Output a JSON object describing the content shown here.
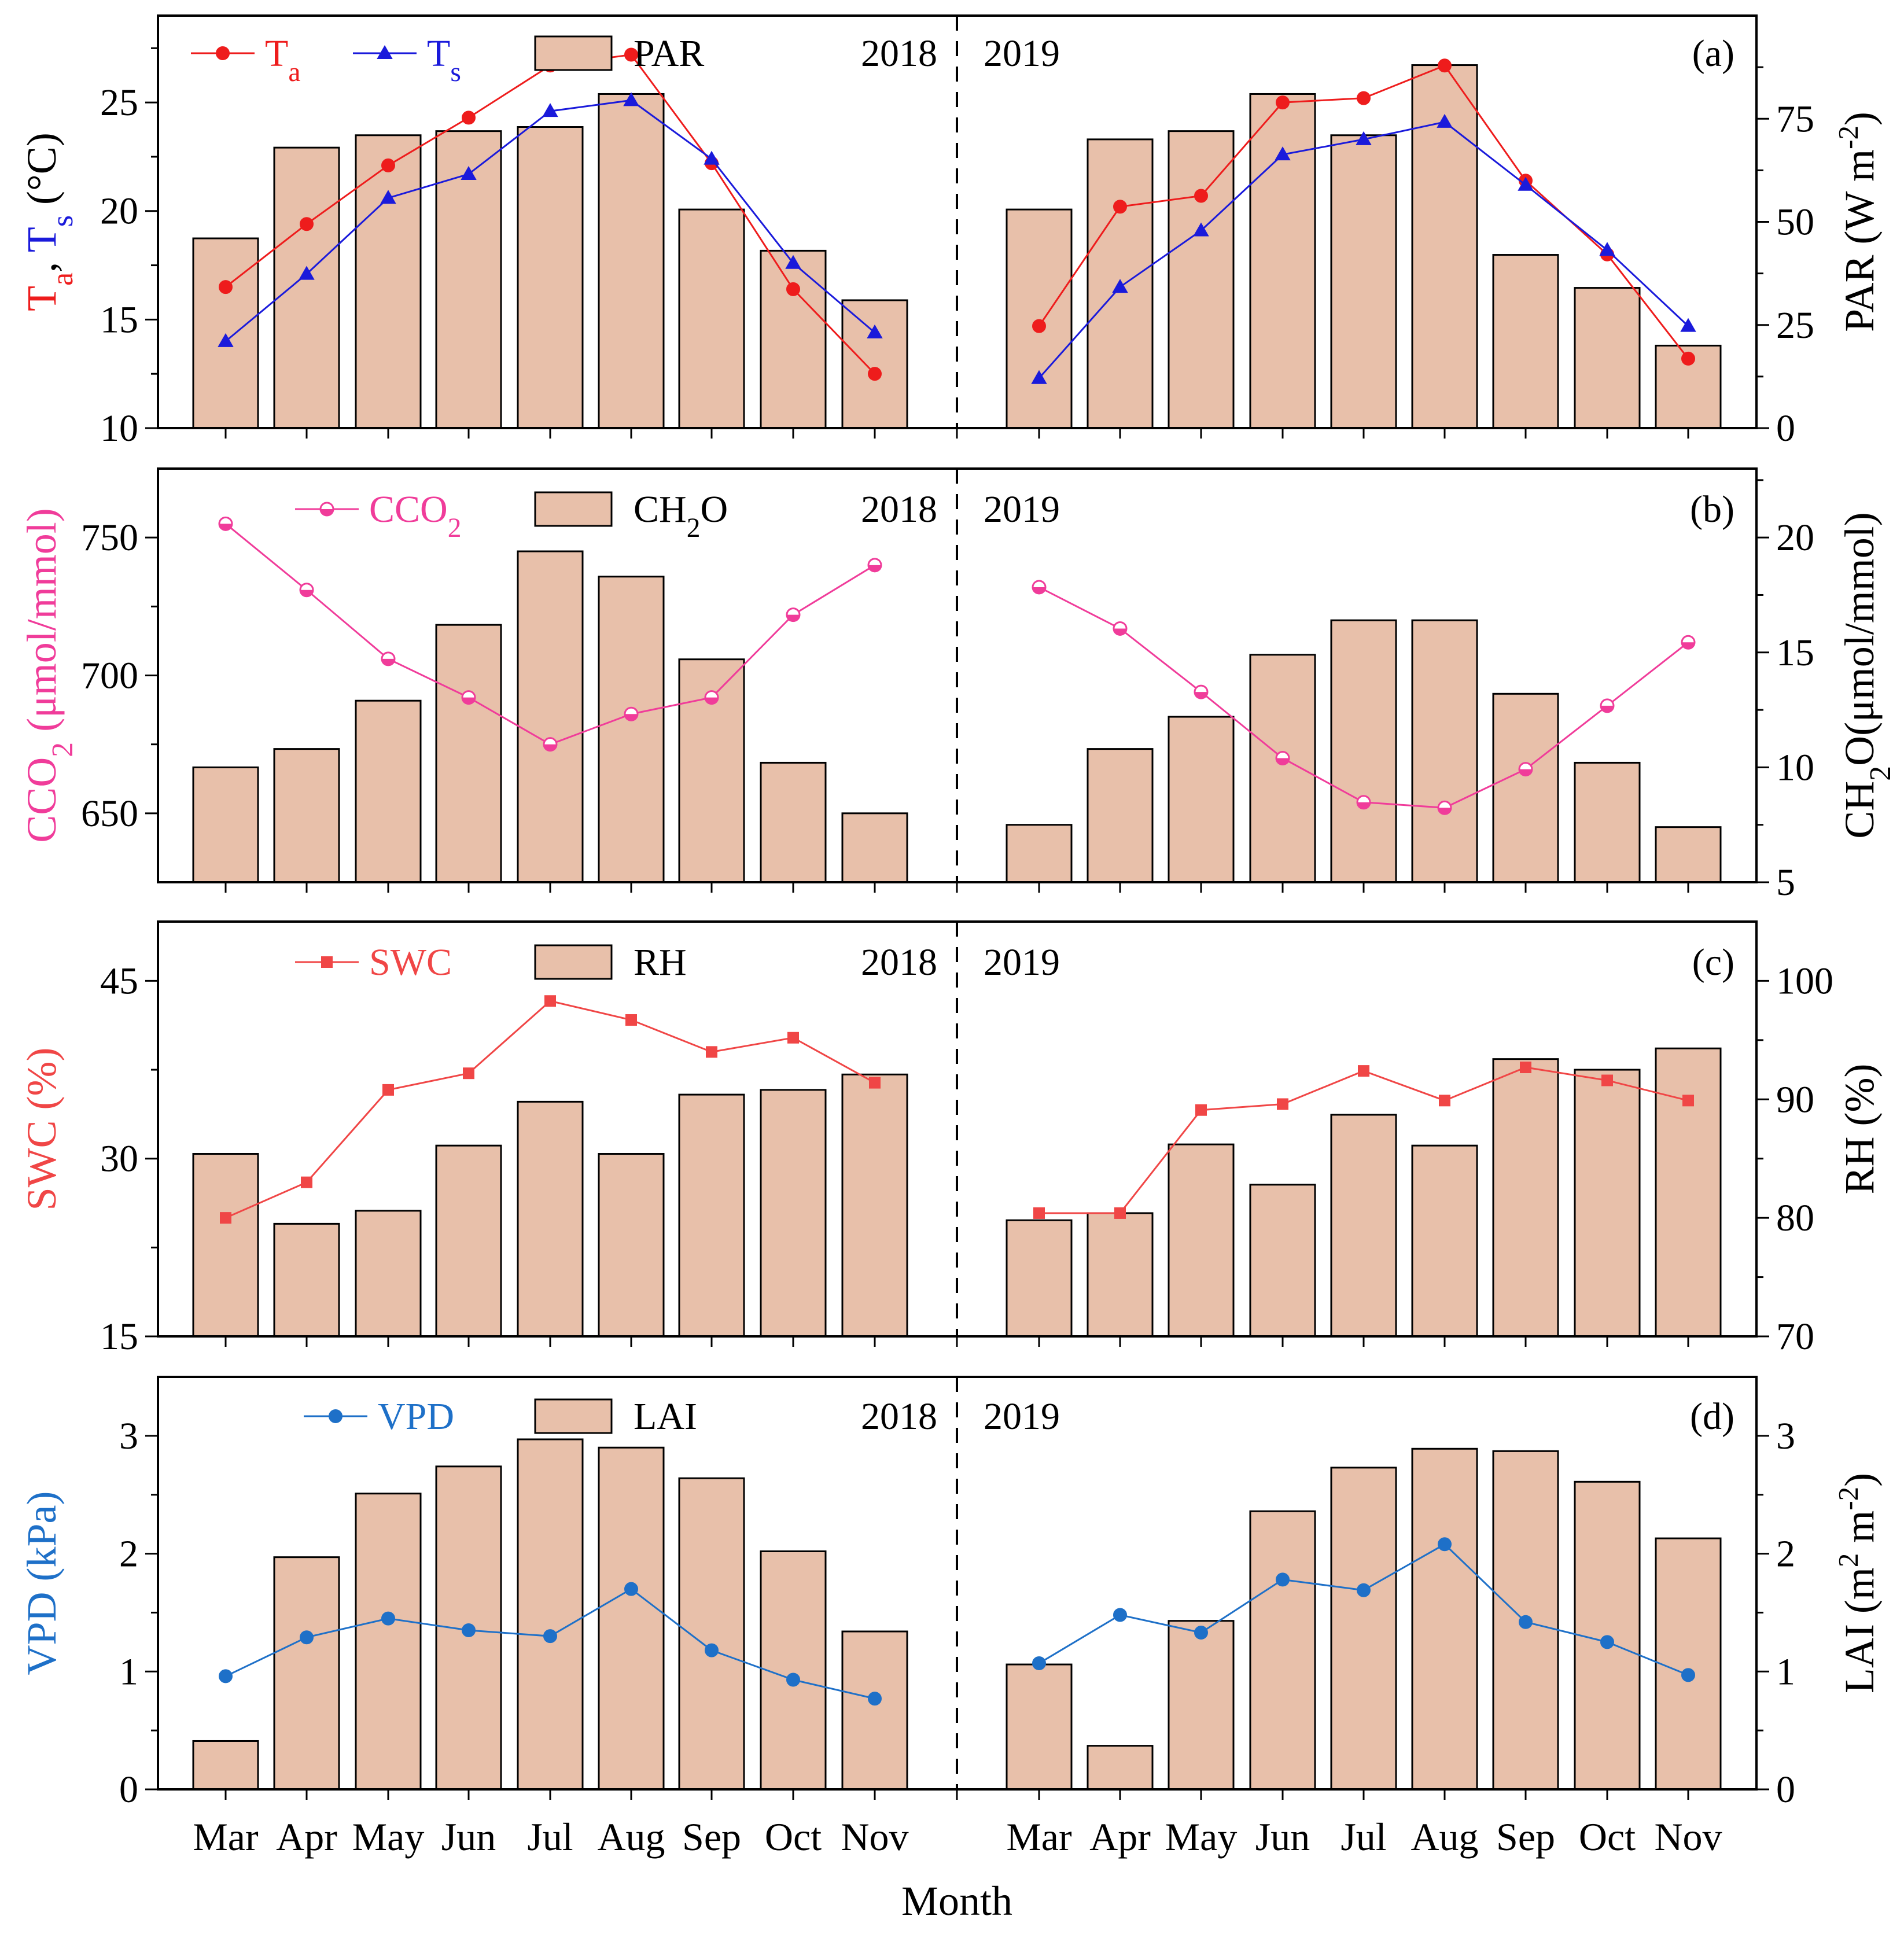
{
  "figure": {
    "xlabel": "Month"
  },
  "colors": {
    "bar_fill": "#e8c0aa",
    "bar_stroke": "#000000",
    "ta": "#ee1c1c",
    "ts": "#1a1adb",
    "cco2": "#f03c9a",
    "swc": "#f04646",
    "vpd": "#1e70c8"
  },
  "years": [
    "2018",
    "2019"
  ],
  "months": [
    "Mar",
    "Apr",
    "May",
    "Jun",
    "Jul",
    "Aug",
    "Sep",
    "Oct",
    "Nov"
  ],
  "chart_data": [
    {
      "panel": "(a)",
      "type": "bar+line",
      "ylabel_left": {
        "parts": [
          {
            "t": "T",
            "c": "ta"
          },
          {
            "t": "a",
            "c": "ta",
            "sub": true
          },
          {
            "t": ", ",
            "c": "black"
          },
          {
            "t": "T",
            "c": "ts"
          },
          {
            "t": "s",
            "c": "ts",
            "sub": true
          },
          {
            "t": " (°C)",
            "c": "black"
          }
        ]
      },
      "ylabel_right": {
        "parts": [
          {
            "t": "PAR (W m",
            "c": "black"
          },
          {
            "t": "-2",
            "c": "black",
            "sup": true
          },
          {
            "t": ")",
            "c": "black"
          }
        ]
      },
      "ylim_left": [
        10,
        29
      ],
      "yticks_left": [
        10,
        15,
        20,
        25
      ],
      "ylim_right": [
        0,
        100
      ],
      "yticks_right": [
        0,
        25,
        50,
        75
      ],
      "bars": {
        "name": "PAR",
        "legend_parts": [
          {
            "t": "PAR"
          }
        ],
        "values": {
          "2018": [
            46,
            68,
            71,
            72,
            73,
            81,
            53,
            43,
            31
          ],
          "2019": [
            53,
            70,
            72,
            81,
            71,
            88,
            42,
            34,
            20
          ]
        }
      },
      "lines": [
        {
          "name": "Ta",
          "color": "ta",
          "marker": "circle",
          "legend_parts": [
            {
              "t": "T"
            },
            {
              "t": "a",
              "sub": true
            }
          ],
          "values": {
            "2018": [
              16.5,
              19.4,
              22.1,
              24.3,
              26.7,
              27.2,
              22.2,
              16.4,
              12.5
            ],
            "2019": [
              14.7,
              20.2,
              20.7,
              25.0,
              25.2,
              26.7,
              21.4,
              18.0,
              13.2
            ]
          }
        },
        {
          "name": "Ts",
          "color": "ts",
          "marker": "triangle",
          "legend_parts": [
            {
              "t": "T"
            },
            {
              "t": "s",
              "sub": true
            }
          ],
          "values": {
            "2018": [
              14.0,
              17.1,
              20.6,
              21.7,
              24.6,
              25.1,
              22.4,
              17.6,
              14.4
            ],
            "2019": [
              12.3,
              16.5,
              19.1,
              22.6,
              23.3,
              24.1,
              21.2,
              18.2,
              14.7
            ]
          }
        }
      ]
    },
    {
      "panel": "(b)",
      "type": "bar+line",
      "ylabel_left": {
        "parts": [
          {
            "t": "CCO",
            "c": "cco2"
          },
          {
            "t": "2",
            "c": "cco2",
            "sub": true
          },
          {
            "t": " (μmol/mmol)",
            "c": "cco2"
          }
        ]
      },
      "ylabel_right": {
        "parts": [
          {
            "t": "CH",
            "c": "black"
          },
          {
            "t": "2",
            "c": "black",
            "sub": true
          },
          {
            "t": "O(μmol/mmol)",
            "c": "black"
          }
        ]
      },
      "ylim_left": [
        625,
        775
      ],
      "yticks_left": [
        650,
        700,
        750
      ],
      "ylim_right": [
        5,
        23
      ],
      "yticks_right": [
        5,
        10,
        15,
        20
      ],
      "bars": {
        "name": "CH2O",
        "legend_parts": [
          {
            "t": "CH"
          },
          {
            "t": "2",
            "sub": true
          },
          {
            "t": "O"
          }
        ],
        "values": {
          "2018": [
            10.0,
            10.8,
            12.9,
            16.2,
            19.4,
            18.3,
            14.7,
            10.2,
            8.0
          ],
          "2019": [
            7.5,
            10.8,
            12.2,
            14.9,
            16.4,
            16.4,
            13.2,
            10.2,
            7.4
          ]
        }
      },
      "lines": [
        {
          "name": "CCO2",
          "color": "cco2",
          "marker": "halfcircle",
          "legend_parts": [
            {
              "t": "CCO"
            },
            {
              "t": "2",
              "sub": true
            }
          ],
          "values": {
            "2018": [
              755,
              731,
              706,
              692,
              675,
              686,
              692,
              722,
              740
            ],
            "2019": [
              732,
              717,
              694,
              670,
              654,
              652,
              666,
              689,
              712
            ]
          }
        }
      ]
    },
    {
      "panel": "(c)",
      "type": "bar+line",
      "ylabel_left": {
        "parts": [
          {
            "t": "SWC (%)",
            "c": "swc"
          }
        ]
      },
      "ylabel_right": {
        "parts": [
          {
            "t": "RH (%)",
            "c": "black"
          }
        ]
      },
      "ylim_left": [
        15,
        50
      ],
      "yticks_left": [
        15,
        30,
        45
      ],
      "ylim_right": [
        70,
        105
      ],
      "yticks_right": [
        70,
        80,
        90,
        100
      ],
      "bars": {
        "name": "RH",
        "legend_parts": [
          {
            "t": "RH"
          }
        ],
        "values": {
          "2018": [
            85.4,
            79.5,
            80.6,
            86.1,
            89.8,
            85.4,
            90.4,
            90.8,
            92.1
          ],
          "2019": [
            79.8,
            80.4,
            86.2,
            82.8,
            88.7,
            86.1,
            93.4,
            92.5,
            94.3
          ]
        }
      },
      "lines": [
        {
          "name": "SWC",
          "color": "swc",
          "marker": "square",
          "legend_parts": [
            {
              "t": "SWC"
            }
          ],
          "values": {
            "2018": [
              25.0,
              28.0,
              35.8,
              37.2,
              43.3,
              41.7,
              39.0,
              40.2,
              36.4
            ],
            "2019": [
              25.4,
              25.4,
              34.1,
              34.6,
              37.4,
              34.9,
              37.7,
              36.6,
              34.9
            ]
          }
        }
      ]
    },
    {
      "panel": "(d)",
      "type": "bar+line",
      "ylabel_left": {
        "parts": [
          {
            "t": "VPD (kPa)",
            "c": "vpd"
          }
        ]
      },
      "ylabel_right": {
        "parts": [
          {
            "t": "LAI (m",
            "c": "black"
          },
          {
            "t": "2",
            "c": "black",
            "sup": true
          },
          {
            "t": " m",
            "c": "black"
          },
          {
            "t": "-2",
            "c": "black",
            "sup": true
          },
          {
            "t": ")",
            "c": "black"
          }
        ]
      },
      "ylim_left": [
        0,
        3.5
      ],
      "yticks_left": [
        0,
        1,
        2,
        3
      ],
      "ylim_right": [
        0,
        3.5
      ],
      "yticks_right": [
        0,
        1,
        2,
        3
      ],
      "bars": {
        "name": "LAI",
        "legend_parts": [
          {
            "t": "LAI"
          }
        ],
        "values": {
          "2018": [
            0.41,
            1.97,
            2.51,
            2.74,
            2.97,
            2.9,
            2.64,
            2.02,
            1.34
          ],
          "2019": [
            1.06,
            0.37,
            1.43,
            2.36,
            2.73,
            2.89,
            2.87,
            2.61,
            2.13
          ]
        }
      },
      "lines": [
        {
          "name": "VPD",
          "color": "vpd",
          "marker": "circle",
          "legend_parts": [
            {
              "t": "VPD"
            }
          ],
          "values": {
            "2018": [
              0.96,
              1.29,
              1.45,
              1.35,
              1.3,
              1.7,
              1.18,
              0.93,
              0.77
            ],
            "2019": [
              1.07,
              1.48,
              1.33,
              1.78,
              1.69,
              2.08,
              1.42,
              1.25,
              0.97
            ]
          }
        }
      ]
    }
  ]
}
